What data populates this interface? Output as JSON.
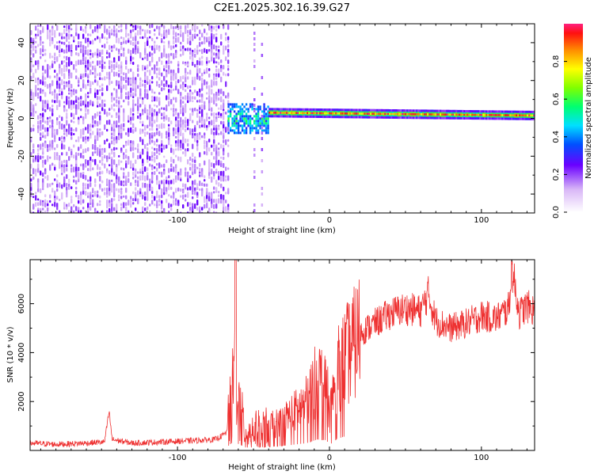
{
  "title": "C2E1.2025.302.16.39.G27",
  "colors": {
    "snr_line": "#ee3030",
    "frame": "#000000"
  },
  "chart_data": [
    {
      "type": "heatmap",
      "title": "C2E1.2025.302.16.39.G27",
      "xlabel": "Height of straight line (km)",
      "ylabel": "Frequency (Hz)",
      "xlim": [
        -197,
        135
      ],
      "ylim": [
        -50,
        50
      ],
      "xticks": [
        -100,
        0,
        100
      ],
      "xtick_labels": [
        "-100",
        "0",
        "100"
      ],
      "yticks": [
        -40,
        -20,
        0,
        20,
        40
      ],
      "ytick_labels": [
        "-40",
        "-20",
        "0",
        "20",
        "40"
      ],
      "colorbar": {
        "label": "Normalized spectral amplitude",
        "range": [
          0,
          1
        ],
        "ticks": [
          0.0,
          0.2,
          0.4,
          0.6,
          0.8
        ],
        "tick_labels": [
          "0.0",
          "0.2",
          "0.4",
          "0.6",
          "0.8"
        ]
      },
      "regions": [
        {
          "x_range": [
            -197,
            -67
          ],
          "freq_range": [
            -50,
            50
          ],
          "amplitude": [
            0.1,
            0.22
          ],
          "pattern": "noise"
        },
        {
          "x_range": [
            -67,
            -40
          ],
          "freq_range": [
            -8,
            8
          ],
          "amplitude": [
            0.3,
            0.55
          ],
          "pattern": "broadened"
        },
        {
          "x_range": [
            -40,
            135
          ],
          "center_freq": [
            3,
            1.5
          ],
          "width_hz": 2,
          "amplitude": [
            0.75,
            1.0
          ],
          "pattern": "line"
        }
      ]
    },
    {
      "type": "line",
      "xlabel": "Height of straight line (km)",
      "ylabel": "SNR (10 * v/v)",
      "xlim": [
        -197,
        135
      ],
      "ylim": [
        0,
        7800
      ],
      "xticks": [
        -100,
        0,
        100
      ],
      "xtick_labels": [
        "-100",
        "0",
        "100"
      ],
      "yticks": [
        2000,
        4000,
        6000
      ],
      "ytick_labels": [
        "2000",
        "4000",
        "6000"
      ],
      "series": [
        {
          "x": [
            -197,
            -180,
            -160,
            -148,
            -145,
            -143,
            -130,
            -110,
            -90,
            -75,
            -68,
            -63,
            -62,
            -60,
            -55,
            -45,
            -35,
            -25,
            -15,
            -8,
            -2,
            0,
            5,
            10,
            15,
            20,
            30,
            40,
            50,
            60,
            65,
            70,
            80,
            90,
            100,
            110,
            118,
            120,
            125,
            130,
            135
          ],
          "y": [
            300,
            250,
            300,
            350,
            1600,
            450,
            300,
            350,
            400,
            450,
            700,
            2500,
            7800,
            1800,
            800,
            900,
            1100,
            1500,
            2000,
            3000,
            2800,
            1500,
            3200,
            3800,
            4200,
            4800,
            5200,
            5600,
            5800,
            5700,
            6400,
            5300,
            5000,
            5200,
            5500,
            5400,
            5800,
            7500,
            5600,
            5900,
            5700
          ]
        }
      ]
    }
  ]
}
